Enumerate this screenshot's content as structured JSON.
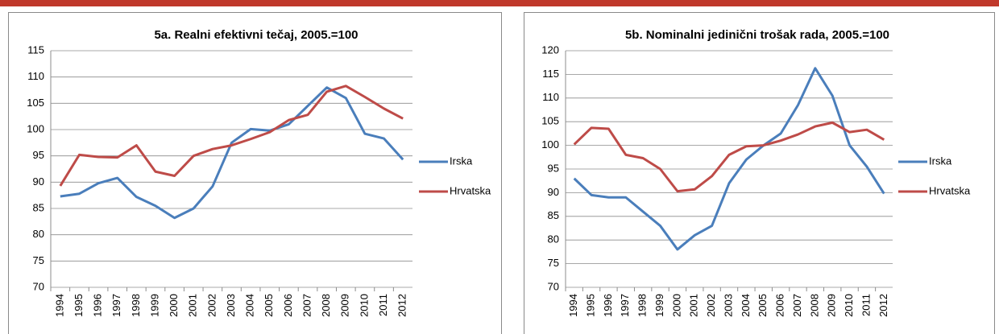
{
  "chart_data": [
    {
      "type": "line",
      "title": "5a. Realni efektivni tečaj, 2005.=100",
      "categories": [
        "1994",
        "1995",
        "1996",
        "1997",
        "1998",
        "1999",
        "2000",
        "2001",
        "2002",
        "2003",
        "2004",
        "2005",
        "2006",
        "2007",
        "2008",
        "2009",
        "2010",
        "2011",
        "2012"
      ],
      "series": [
        {
          "name": "Irska",
          "color": "#4a7ebb",
          "values": [
            87.3,
            87.8,
            89.8,
            90.8,
            87.2,
            85.5,
            83.2,
            85.0,
            89.2,
            97.5,
            100.1,
            99.8,
            101.0,
            104.5,
            108.0,
            106.0,
            99.2,
            98.3,
            94.3
          ]
        },
        {
          "name": "Hrvatska",
          "color": "#be4b48",
          "values": [
            89.3,
            95.2,
            94.8,
            94.7,
            97.0,
            92.0,
            91.2,
            95.0,
            96.3,
            97.0,
            98.2,
            99.5,
            101.8,
            102.8,
            107.2,
            108.3,
            106.2,
            104.0,
            102.1
          ]
        }
      ],
      "ylim": [
        70,
        115
      ],
      "yticks": [
        70,
        75,
        80,
        85,
        90,
        95,
        100,
        105,
        110,
        115
      ],
      "grid": true,
      "legend": "right"
    },
    {
      "type": "line",
      "title": "5b. Nominalni jedinični trošak rada, 2005.=100",
      "categories": [
        "1994",
        "1995",
        "1996",
        "1997",
        "1998",
        "1999",
        "2000",
        "2001",
        "2002",
        "2003",
        "2004",
        "2005",
        "2006",
        "2007",
        "2008",
        "2009",
        "2010",
        "2011",
        "2012"
      ],
      "series": [
        {
          "name": "Irska",
          "color": "#4a7ebb",
          "values": [
            93.0,
            89.5,
            89.0,
            89.0,
            86.0,
            83.0,
            78.0,
            81.0,
            83.0,
            92.0,
            97.0,
            100.0,
            102.5,
            108.5,
            116.3,
            110.5,
            100.0,
            95.5,
            89.8
          ]
        },
        {
          "name": "Hrvatska",
          "color": "#be4b48",
          "values": [
            100.2,
            103.7,
            103.5,
            98.0,
            97.3,
            95.0,
            90.3,
            90.7,
            93.5,
            98.0,
            99.8,
            100.0,
            101.0,
            102.3,
            104.0,
            104.8,
            102.8,
            103.3,
            101.2
          ]
        }
      ],
      "ylim": [
        70,
        120
      ],
      "yticks": [
        70,
        75,
        80,
        85,
        90,
        95,
        100,
        105,
        110,
        115,
        120
      ],
      "grid": true,
      "legend": "right"
    }
  ]
}
